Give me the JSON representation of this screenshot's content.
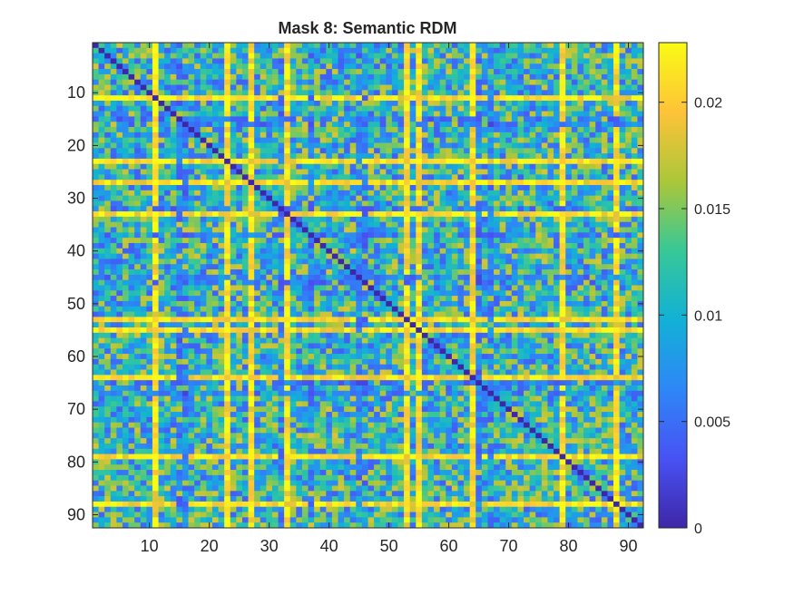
{
  "chart_data": {
    "type": "heatmap",
    "title": "Mask 8: Semantic RDM",
    "xlabel": "",
    "ylabel": "",
    "matrix_size": 92,
    "x_ticks": [
      10,
      20,
      30,
      40,
      50,
      60,
      70,
      80,
      90
    ],
    "y_ticks": [
      10,
      20,
      30,
      40,
      50,
      60,
      70,
      80,
      90
    ],
    "x_tick_labels": [
      "10",
      "20",
      "30",
      "40",
      "50",
      "60",
      "70",
      "80",
      "90"
    ],
    "y_tick_labels": [
      "10",
      "20",
      "30",
      "40",
      "50",
      "60",
      "70",
      "80",
      "90"
    ],
    "color_limits": [
      0,
      0.0228
    ],
    "colorbar_ticks": [
      0,
      0.005,
      0.01,
      0.015,
      0.02
    ],
    "colorbar_tick_labels": [
      "0",
      "0.005",
      "0.01",
      "0.015",
      "0.02"
    ],
    "colormap": "parula",
    "diagonal_value": 0,
    "high_dissimilarity_items": [
      11,
      23,
      27,
      33,
      53,
      55,
      64,
      79,
      88
    ],
    "low_dissimilarity_items": [
      15,
      16,
      32,
      37,
      45,
      46,
      65,
      67
    ],
    "typical_offdiagonal_range": [
      0.004,
      0.018
    ],
    "grid": false,
    "colorbar_location": "right"
  }
}
